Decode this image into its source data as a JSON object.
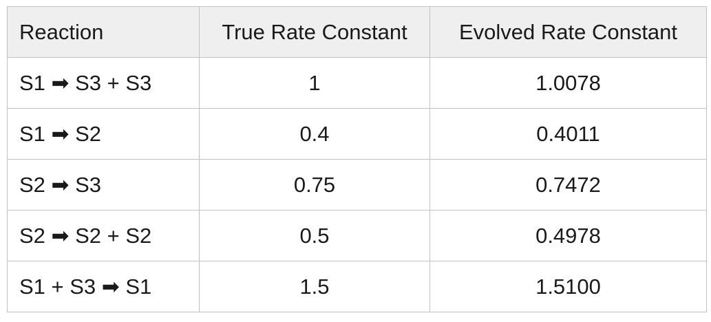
{
  "table": {
    "headers": [
      "Reaction",
      "True Rate Constant",
      "Evolved Rate Constant"
    ],
    "rows": [
      {
        "reaction": "S1 ➡ S3 + S3",
        "true_rate": "1",
        "evolved_rate": "1.0078"
      },
      {
        "reaction": "S1 ➡ S2",
        "true_rate": "0.4",
        "evolved_rate": "0.4011"
      },
      {
        "reaction": "S2 ➡ S3",
        "true_rate": "0.75",
        "evolved_rate": "0.7472"
      },
      {
        "reaction": "S2 ➡ S2 + S2",
        "true_rate": "0.5",
        "evolved_rate": "0.4978"
      },
      {
        "reaction": "S1 + S3 ➡ S1",
        "true_rate": "1.5",
        "evolved_rate": "1.5100"
      }
    ]
  },
  "colors": {
    "header_background": "#efefef",
    "border": "#c2c2c2",
    "text": "#1a1a1a"
  }
}
